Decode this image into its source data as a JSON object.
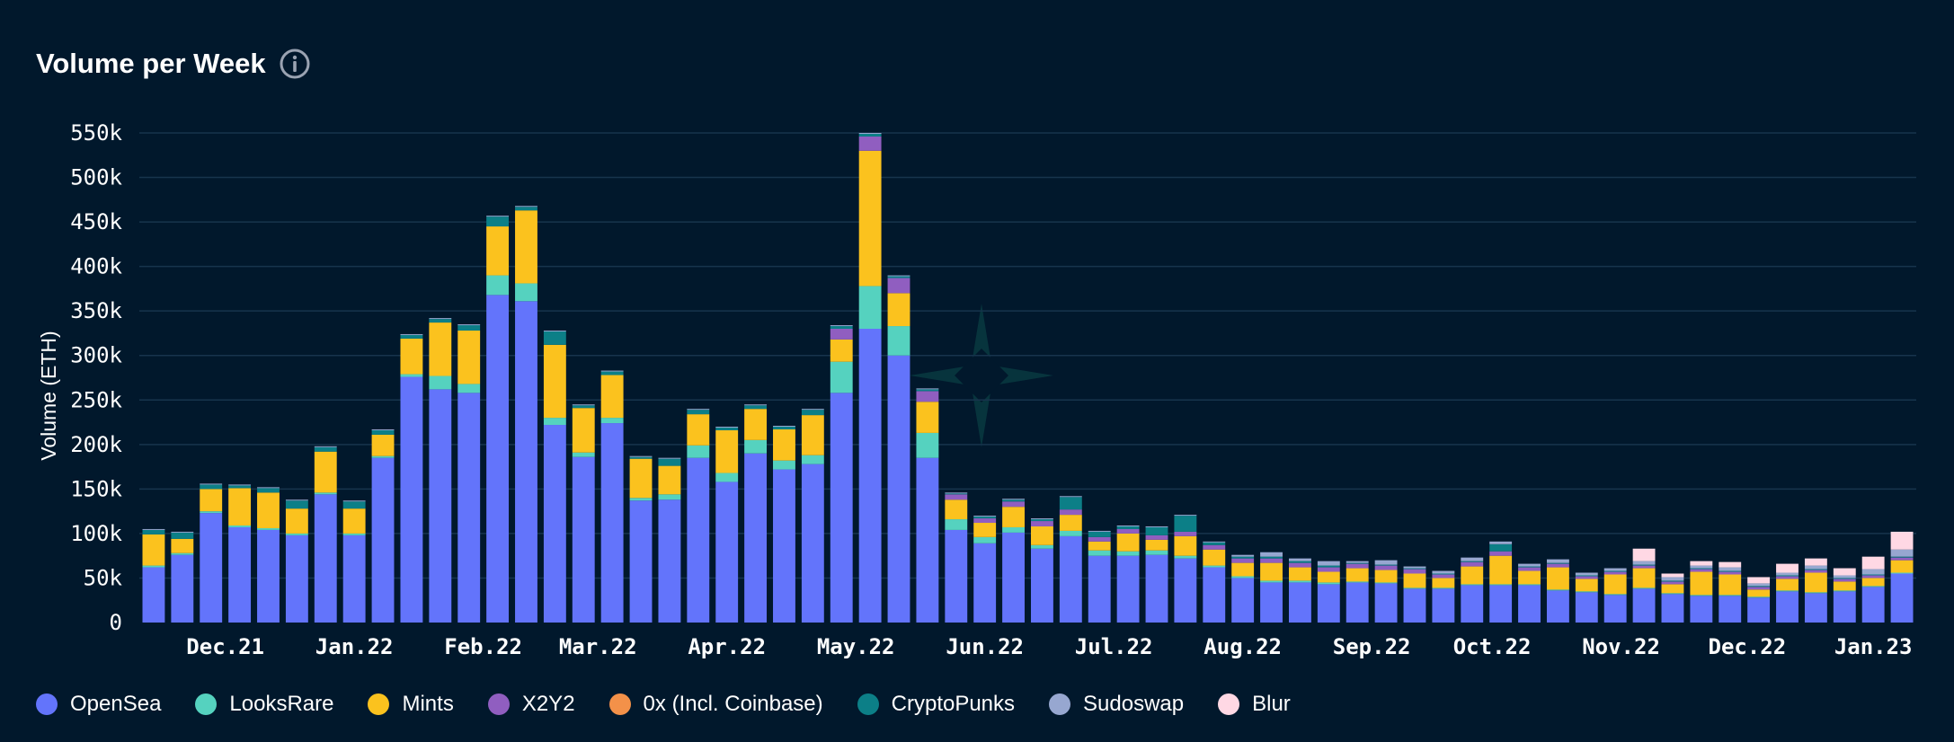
{
  "header": {
    "title": "Volume per Week",
    "info_icon": "info-icon"
  },
  "colors": {
    "background": "#01182c",
    "grid": "#17344d",
    "watermark": "#07343d"
  },
  "chart_data": {
    "type": "bar",
    "stacked": true,
    "title": "Volume per Week",
    "xlabel": "",
    "ylabel": "Volume (ETH)",
    "ylim": [
      0,
      550000
    ],
    "yticks": [
      0,
      50000,
      100000,
      150000,
      200000,
      250000,
      300000,
      350000,
      400000,
      450000,
      500000,
      550000
    ],
    "ytick_labels": [
      "0",
      "50k",
      "100k",
      "150k",
      "200k",
      "250k",
      "300k",
      "350k",
      "400k",
      "450k",
      "500k",
      "550k"
    ],
    "grid": true,
    "legend_position": "bottom-left",
    "x_tick_labels": [
      {
        "label": "Dec.21",
        "index": 2.5
      },
      {
        "label": "Jan.22",
        "index": 7
      },
      {
        "label": "Feb.22",
        "index": 11.5
      },
      {
        "label": "Mar.22",
        "index": 15.5
      },
      {
        "label": "Apr.22",
        "index": 20
      },
      {
        "label": "May.22",
        "index": 24.5
      },
      {
        "label": "Jun.22",
        "index": 29
      },
      {
        "label": "Jul.22",
        "index": 33.5
      },
      {
        "label": "Aug.22",
        "index": 38
      },
      {
        "label": "Sep.22",
        "index": 42.5
      },
      {
        "label": "Oct.22",
        "index": 46.7
      },
      {
        "label": "Nov.22",
        "index": 51.2
      },
      {
        "label": "Dec.22",
        "index": 55.6
      },
      {
        "label": "Jan.23",
        "index": 60
      }
    ],
    "series": [
      {
        "name": "OpenSea",
        "color": "#6374fb",
        "values": [
          62000,
          76000,
          123000,
          107000,
          104000,
          98000,
          144000,
          98000,
          185000,
          276000,
          262000,
          258000,
          368000,
          361000,
          222000,
          186000,
          224000,
          137000,
          138000,
          185000,
          158000,
          190000,
          172000,
          178000,
          258000,
          330000,
          300000,
          185000,
          104000,
          89000,
          101000,
          83000,
          97000,
          75000,
          75000,
          76000,
          72000,
          62000,
          50000,
          45000,
          45000,
          43000,
          45000,
          44000,
          38000,
          38000,
          42000,
          42000,
          42000,
          36000,
          34000,
          31000,
          38000,
          32000,
          30000,
          30000,
          28000,
          35000,
          33000,
          35000,
          40000,
          55000
        ]
      },
      {
        "name": "LooksRare",
        "color": "#55d2bf",
        "values": [
          2000,
          2000,
          2000,
          2000,
          2000,
          2000,
          2000,
          2000,
          2000,
          3000,
          15000,
          10000,
          22000,
          20000,
          8000,
          5000,
          6000,
          3000,
          6000,
          14000,
          10000,
          15000,
          10000,
          10000,
          35000,
          48000,
          33000,
          28000,
          12000,
          7000,
          6000,
          4000,
          6000,
          6000,
          5000,
          5000,
          3000,
          2000,
          2000,
          2000,
          2000,
          2000,
          1000,
          1000,
          1000,
          1000,
          1000,
          1000,
          1000,
          1000,
          1000,
          1000,
          1000,
          1000,
          1000,
          1000,
          1000,
          1000,
          1000,
          1000,
          1000,
          1000
        ]
      },
      {
        "name": "Mints",
        "color": "#fbc21e",
        "values": [
          35000,
          16000,
          25000,
          42000,
          40000,
          28000,
          46000,
          28000,
          24000,
          40000,
          60000,
          60000,
          55000,
          82000,
          82000,
          50000,
          48000,
          44000,
          32000,
          35000,
          48000,
          35000,
          35000,
          45000,
          25000,
          152000,
          37000,
          35000,
          22000,
          16000,
          23000,
          21000,
          18000,
          10000,
          20000,
          12000,
          22000,
          18000,
          15000,
          20000,
          15000,
          12000,
          15000,
          14000,
          16000,
          11000,
          20000,
          32000,
          15000,
          25000,
          14000,
          22000,
          22000,
          10000,
          26000,
          23000,
          8000,
          13000,
          22000,
          10000,
          9000,
          14000
        ]
      },
      {
        "name": "X2Y2",
        "color": "#905ec0",
        "values": [
          0,
          0,
          0,
          0,
          0,
          0,
          0,
          0,
          0,
          0,
          0,
          0,
          0,
          0,
          0,
          0,
          0,
          0,
          0,
          0,
          0,
          0,
          0,
          0,
          12000,
          16000,
          17000,
          12000,
          6000,
          5000,
          6000,
          6000,
          6000,
          5000,
          5000,
          5000,
          5000,
          5000,
          5000,
          5000,
          5000,
          5000,
          5000,
          5000,
          5000,
          4000,
          5000,
          5000,
          4000,
          4000,
          3000,
          3000,
          3000,
          3000,
          3000,
          3000,
          3000,
          3000,
          3000,
          3000,
          3000,
          3000
        ]
      },
      {
        "name": "0x (Incl. Coinbase)",
        "color": "#f39149",
        "values": [
          0,
          0,
          0,
          0,
          0,
          0,
          0,
          0,
          0,
          0,
          0,
          0,
          0,
          0,
          0,
          0,
          0,
          0,
          0,
          0,
          0,
          0,
          0,
          0,
          0,
          0,
          0,
          0,
          0,
          0,
          0,
          0,
          0,
          0,
          0,
          0,
          0,
          0,
          0,
          0,
          0,
          0,
          0,
          0,
          0,
          0,
          0,
          0,
          0,
          0,
          0,
          0,
          0,
          0,
          0,
          0,
          0,
          0,
          0,
          0,
          0,
          0
        ]
      },
      {
        "name": "CryptoPunks",
        "color": "#0c7f87",
        "values": [
          5000,
          7000,
          5000,
          3000,
          5000,
          9000,
          5000,
          8000,
          5000,
          4000,
          4000,
          6000,
          11000,
          4000,
          15000,
          3000,
          4000,
          2000,
          8000,
          5000,
          3000,
          4000,
          3000,
          6000,
          3000,
          3000,
          2000,
          2000,
          1000,
          2000,
          2000,
          2000,
          14000,
          6000,
          3000,
          9000,
          18000,
          3000,
          2000,
          2000,
          2000,
          2000,
          1000,
          1000,
          1000,
          1000,
          1000,
          8000,
          1000,
          1000,
          1000,
          1000,
          1000,
          1000,
          1000,
          1000,
          1000,
          1000,
          1000,
          1000,
          1000,
          1000
        ]
      },
      {
        "name": "Sudoswap",
        "color": "#97a7d0",
        "values": [
          1000,
          1000,
          1000,
          1000,
          1000,
          1000,
          1000,
          1000,
          1000,
          1000,
          1000,
          1000,
          1000,
          1000,
          1000,
          1000,
          1000,
          1000,
          1000,
          1000,
          1000,
          1000,
          1000,
          1000,
          1000,
          1000,
          1000,
          1000,
          1000,
          1000,
          1000,
          1000,
          1000,
          1000,
          1000,
          1000,
          1000,
          1000,
          2000,
          5000,
          3000,
          5000,
          2000,
          5000,
          2000,
          3000,
          4000,
          3000,
          3000,
          4000,
          3000,
          3000,
          4000,
          4000,
          3000,
          4000,
          3000,
          3000,
          4000,
          3000,
          6000,
          8000
        ]
      },
      {
        "name": "Blur",
        "color": "#ffd8e4",
        "values": [
          0,
          0,
          0,
          0,
          0,
          0,
          0,
          0,
          0,
          0,
          0,
          0,
          0,
          0,
          0,
          0,
          0,
          0,
          0,
          0,
          0,
          0,
          0,
          0,
          0,
          0,
          0,
          0,
          0,
          0,
          0,
          0,
          0,
          0,
          0,
          0,
          0,
          0,
          0,
          0,
          0,
          0,
          0,
          0,
          0,
          0,
          0,
          0,
          0,
          0,
          0,
          0,
          14000,
          4000,
          5000,
          6000,
          7000,
          10000,
          8000,
          8000,
          14000,
          20000
        ]
      }
    ]
  }
}
